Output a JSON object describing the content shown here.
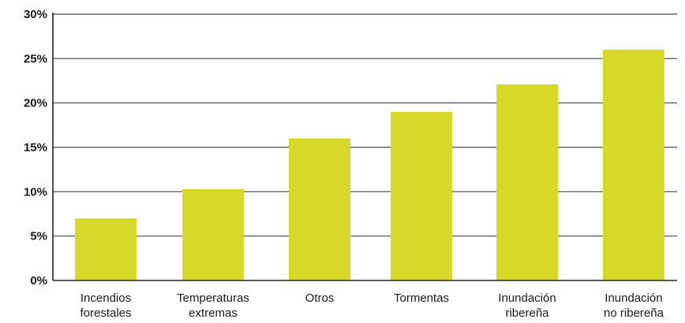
{
  "chart_data": {
    "type": "bar",
    "categories": [
      [
        "Incendios",
        "forestales"
      ],
      [
        "Temperaturas",
        "extremas"
      ],
      [
        "Otros"
      ],
      [
        "Tormentas"
      ],
      [
        "Inundación",
        "ribereña"
      ],
      [
        "Inundación",
        "no ribereña"
      ]
    ],
    "values": [
      7,
      10.3,
      16,
      19,
      22.1,
      26
    ],
    "y_ticks": [
      "0%",
      "5%",
      "10%",
      "15%",
      "20%",
      "25%",
      "30%"
    ],
    "ylim": [
      0,
      30
    ],
    "grid": true,
    "title": "",
    "xlabel": "",
    "ylabel": "",
    "colors": {
      "bar": "#d6d929",
      "grid": "#4a4a4a",
      "axis": "#222222",
      "text": "#1a1a1a"
    }
  }
}
